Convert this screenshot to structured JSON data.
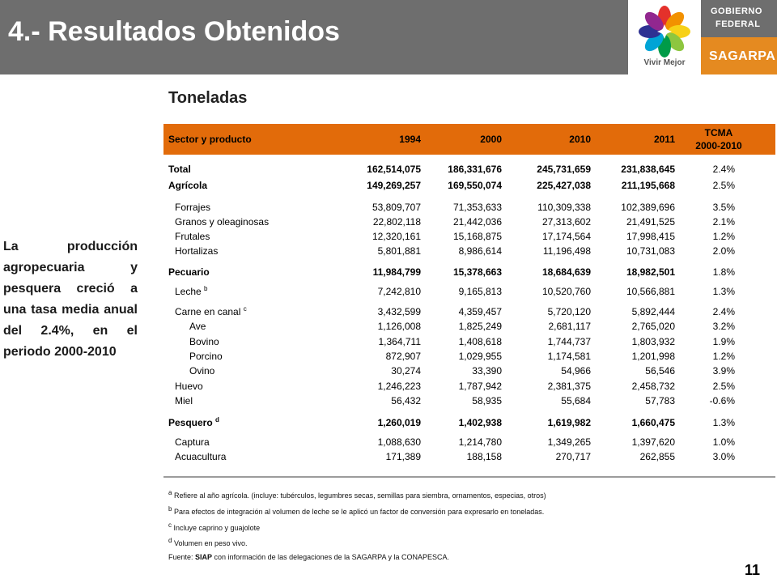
{
  "header": {
    "title": "4.- Resultados Obtenidos",
    "logo_caption": "Vivir Mejor",
    "gobierno_line1": "GOBIERNO",
    "gobierno_line2": "FEDERAL",
    "sagarpa": "SAGARPA"
  },
  "colors": {
    "title_bar": "#6e6e6e",
    "table_header": "#e26b0a",
    "sagarpa_box": "#e58a20"
  },
  "side_text": "La producción agropecuaria y pesquera creció a una tasa media anual del 2.4%, en el periodo 2000-2010",
  "subheading": "Toneladas",
  "table": {
    "headers": {
      "sector": "Sector y producto",
      "y1994": "1994",
      "y2000": "2000",
      "y2010": "2010",
      "y2011": "2011",
      "tcma1": "TCMA",
      "tcma2": "2000-2010"
    },
    "rows": [
      {
        "label": "Total",
        "v1994": "162,514,075",
        "v2000": "186,331,676",
        "v2010": "245,731,659",
        "v2011": "231,838,645",
        "tcma": "2.4%"
      },
      {
        "label": "Agrícola",
        "v1994": "149,269,257",
        "v2000": "169,550,074",
        "v2010": "225,427,038",
        "v2011": "211,195,668",
        "tcma": "2.5%"
      },
      {
        "label": "Forrajes",
        "v1994": "53,809,707",
        "v2000": "71,353,633",
        "v2010": "110,309,338",
        "v2011": "102,389,696",
        "tcma": "3.5%"
      },
      {
        "label": "Granos y oleaginosas",
        "v1994": "22,802,118",
        "v2000": "21,442,036",
        "v2010": "27,313,602",
        "v2011": "21,491,525",
        "tcma": "2.1%"
      },
      {
        "label": "Frutales",
        "v1994": "12,320,161",
        "v2000": "15,168,875",
        "v2010": "17,174,564",
        "v2011": "17,998,415",
        "tcma": "1.2%"
      },
      {
        "label": "Hortalizas",
        "v1994": "5,801,881",
        "v2000": "8,986,614",
        "v2010": "11,196,498",
        "v2011": "10,731,083",
        "tcma": "2.0%"
      },
      {
        "label": "Pecuario",
        "v1994": "11,984,799",
        "v2000": "15,378,663",
        "v2010": "18,684,639",
        "v2011": "18,982,501",
        "tcma": "1.8%"
      },
      {
        "label": "Leche",
        "sup": "b",
        "v1994": "7,242,810",
        "v2000": "9,165,813",
        "v2010": "10,520,760",
        "v2011": "10,566,881",
        "tcma": "1.3%"
      },
      {
        "label": "Carne en canal",
        "sup": "c",
        "v1994": "3,432,599",
        "v2000": "4,359,457",
        "v2010": "5,720,120",
        "v2011": "5,892,444",
        "tcma": "2.4%"
      },
      {
        "label": "Ave",
        "v1994": "1,126,008",
        "v2000": "1,825,249",
        "v2010": "2,681,117",
        "v2011": "2,765,020",
        "tcma": "3.2%"
      },
      {
        "label": "Bovino",
        "v1994": "1,364,711",
        "v2000": "1,408,618",
        "v2010": "1,744,737",
        "v2011": "1,803,932",
        "tcma": "1.9%"
      },
      {
        "label": "Porcino",
        "v1994": "872,907",
        "v2000": "1,029,955",
        "v2010": "1,174,581",
        "v2011": "1,201,998",
        "tcma": "1.2%"
      },
      {
        "label": "Ovino",
        "v1994": "30,274",
        "v2000": "33,390",
        "v2010": "54,966",
        "v2011": "56,546",
        "tcma": "3.9%"
      },
      {
        "label": "Huevo",
        "v1994": "1,246,223",
        "v2000": "1,787,942",
        "v2010": "2,381,375",
        "v2011": "2,458,732",
        "tcma": "2.5%"
      },
      {
        "label": "Miel",
        "v1994": "56,432",
        "v2000": "58,935",
        "v2010": "55,684",
        "v2011": "57,783",
        "tcma": "-0.6%"
      },
      {
        "label": "Pesquero",
        "sup": "d",
        "v1994": "1,260,019",
        "v2000": "1,402,938",
        "v2010": "1,619,982",
        "v2011": "1,660,475",
        "tcma": "1.3%"
      },
      {
        "label": "Captura",
        "v1994": "1,088,630",
        "v2000": "1,214,780",
        "v2010": "1,349,265",
        "v2011": "1,397,620",
        "tcma": "1.0%"
      },
      {
        "label": "Acuacultura",
        "v1994": "171,389",
        "v2000": "188,158",
        "v2010": "270,717",
        "v2011": "262,855",
        "tcma": "3.0%"
      }
    ]
  },
  "notes": {
    "a_mark": "a",
    "a": "Refiere al año agrícola. (incluye: tubérculos, legumbres secas, semillas para siembra, ornamentos, especias, otros)",
    "b_mark": "b",
    "b": "Para efectos de integración al volumen de leche se le aplicó un factor de conversión para expresarlo en toneladas.",
    "c_mark": "c",
    "c": "Incluye caprino y guajolote",
    "d_mark": "d",
    "d": "Volumen en peso vivo.",
    "fuente_label": "Fuente: ",
    "fuente_bold": "SIAP",
    "fuente_rest": " con información de las delegaciones de la SAGARPA y la CONAPESCA."
  },
  "page_number": "11"
}
